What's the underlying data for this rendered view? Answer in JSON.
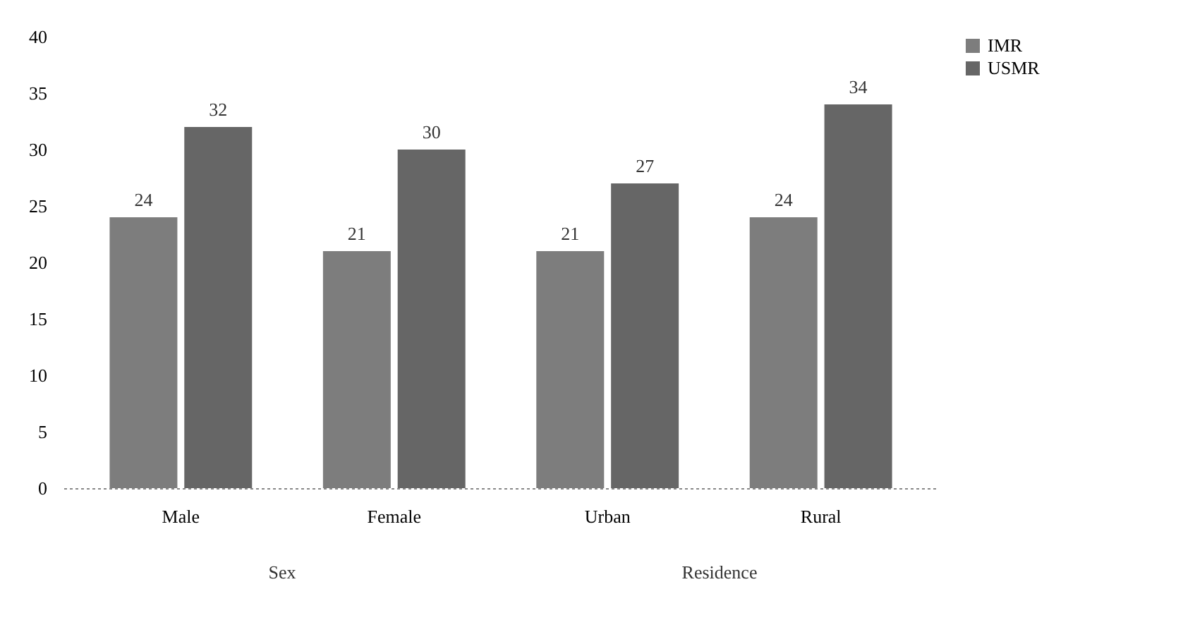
{
  "chart_data": {
    "type": "bar",
    "categories": [
      "Male",
      "Female",
      "Urban",
      "Rural"
    ],
    "series": [
      {
        "name": "IMR",
        "color": "#7d7d7d",
        "values": [
          24,
          21,
          21,
          24
        ]
      },
      {
        "name": "USMR",
        "color": "#666666",
        "values": [
          32,
          30,
          27,
          34
        ]
      }
    ],
    "ylim": [
      0,
      40
    ],
    "yticks": [
      0,
      5,
      10,
      15,
      20,
      25,
      30,
      35,
      40
    ],
    "grid": false,
    "legend": "right",
    "data_labels": true,
    "annotations": [
      "Sex",
      "Residence"
    ]
  }
}
